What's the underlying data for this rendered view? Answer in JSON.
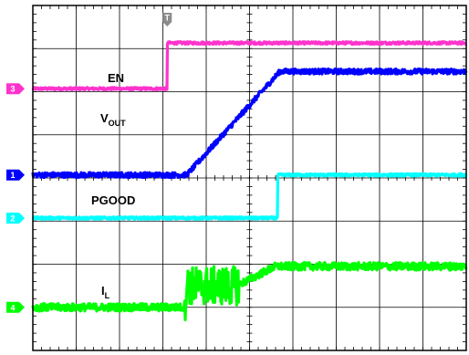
{
  "chart_data": {
    "type": "line",
    "title": "",
    "xlabel": "",
    "ylabel": "",
    "grid": true,
    "divisions": {
      "x": 10,
      "y": 8
    },
    "xlim": [
      0,
      10
    ],
    "ylim": [
      0,
      8
    ],
    "trigger_marker": {
      "label": "T",
      "x": 3.1,
      "color": "#8c8c8c"
    },
    "series": [
      {
        "name": "EN",
        "channel": "3",
        "color": "#ff33cc",
        "points": [
          [
            0,
            6.07
          ],
          [
            3.1,
            6.07
          ],
          [
            3.1,
            7.13
          ],
          [
            10,
            7.13
          ]
        ],
        "noise": 0.03
      },
      {
        "name": "VOUT",
        "name_main": "V",
        "name_sub": "OUT",
        "channel": "1",
        "color": "#0000ff",
        "points": [
          [
            0,
            4.07
          ],
          [
            3.55,
            4.07
          ],
          [
            5.7,
            6.47
          ],
          [
            10,
            6.47
          ]
        ],
        "noise": 0.06
      },
      {
        "name": "PGOOD",
        "channel": "2",
        "color": "#00ffff",
        "points": [
          [
            0,
            3.07
          ],
          [
            5.65,
            3.07
          ],
          [
            5.65,
            4.07
          ],
          [
            10,
            4.07
          ]
        ],
        "noise": 0.03
      },
      {
        "name": "IL",
        "name_main": "I",
        "name_sub": "L",
        "channel": "4",
        "color": "#00ff00",
        "points": [
          [
            0,
            1.0
          ],
          [
            3.5,
            1.0
          ],
          [
            3.55,
            1.5
          ],
          [
            4.7,
            1.5
          ],
          [
            5.6,
            1.95
          ],
          [
            10,
            1.95
          ]
        ],
        "noise": 0.09,
        "burst": {
          "x0": 3.5,
          "x1": 4.75,
          "amp": 0.45
        }
      }
    ]
  }
}
